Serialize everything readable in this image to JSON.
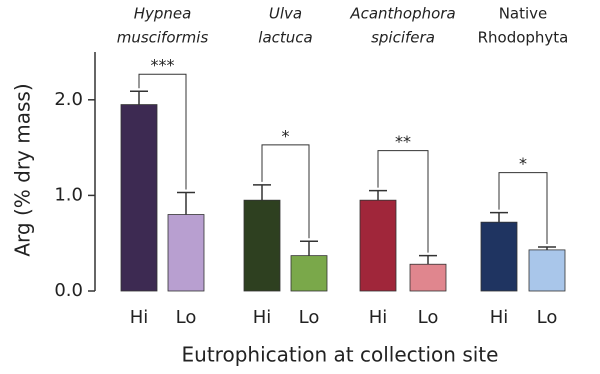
{
  "chart_data": {
    "type": "bar",
    "y_label": "Arg (% dry mass)",
    "x_label": "Eutrophication at collection site",
    "ylim": [
      0,
      2.5
    ],
    "yticks": [
      {
        "value": 0,
        "label": "0.0"
      },
      {
        "value": 1,
        "label": "1.0"
      },
      {
        "value": 2,
        "label": "2.0"
      }
    ],
    "groups": [
      {
        "label_lines": [
          "Hypnea",
          "musciformis"
        ],
        "italic": true,
        "significance": "***",
        "bars": [
          {
            "name": "Hi",
            "value": 1.95,
            "error": 0.14,
            "color": "#3d2a52"
          },
          {
            "name": "Lo",
            "value": 0.8,
            "error": 0.23,
            "color": "#b89fd0"
          }
        ]
      },
      {
        "label_lines": [
          "Ulva",
          "lactuca"
        ],
        "italic": true,
        "significance": "*",
        "bars": [
          {
            "name": "Hi",
            "value": 0.95,
            "error": 0.16,
            "color": "#2e4020"
          },
          {
            "name": "Lo",
            "value": 0.37,
            "error": 0.15,
            "color": "#7aa84a"
          }
        ]
      },
      {
        "label_lines": [
          "Acanthophora",
          "spicifera"
        ],
        "italic": true,
        "significance": "**",
        "bars": [
          {
            "name": "Hi",
            "value": 0.95,
            "error": 0.1,
            "color": "#a0263a"
          },
          {
            "name": "Lo",
            "value": 0.28,
            "error": 0.09,
            "color": "#e0868e"
          }
        ]
      },
      {
        "label_lines": [
          "Native",
          "Rhodophyta"
        ],
        "italic": false,
        "significance": "*",
        "bars": [
          {
            "name": "Hi",
            "value": 0.72,
            "error": 0.1,
            "color": "#1f3461"
          },
          {
            "name": "Lo",
            "value": 0.43,
            "error": 0.03,
            "color": "#a9c6ea"
          }
        ]
      }
    ]
  }
}
